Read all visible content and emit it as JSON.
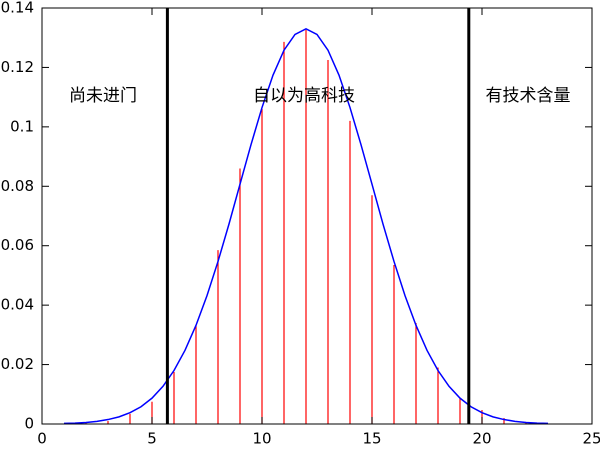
{
  "chart_data": {
    "type": "line",
    "xlim": [
      0,
      25
    ],
    "xticks": [
      0,
      5,
      10,
      15,
      20,
      25
    ],
    "ylim": [
      0,
      0.14
    ],
    "yticks": [
      0,
      0.02,
      0.04,
      0.06,
      0.08,
      0.1,
      0.12,
      0.14
    ],
    "series": [
      {
        "style": "impulse",
        "color": "#ff0000",
        "x": [
          2,
          3,
          4,
          5,
          6,
          7,
          8,
          9,
          10,
          11,
          12,
          13,
          14,
          15,
          16,
          17,
          18,
          19,
          20,
          21,
          22
        ],
        "values": [
          0.0003,
          0.001,
          0.0034,
          0.0075,
          0.0175,
          0.033,
          0.0585,
          0.086,
          0.106,
          0.1286,
          0.1326,
          0.1225,
          0.102,
          0.077,
          0.0535,
          0.034,
          0.019,
          0.0088,
          0.0047,
          0.002,
          0.0007
        ]
      },
      {
        "style": "line",
        "color": "#0000ff",
        "x": [
          1,
          1.5,
          2,
          2.5,
          3,
          3.5,
          4,
          4.5,
          5,
          5.5,
          6,
          6.5,
          7,
          7.5,
          8,
          8.5,
          9,
          9.5,
          10,
          10.5,
          11,
          11.5,
          12,
          12.5,
          13,
          13.5,
          14,
          14.5,
          15,
          15.5,
          16,
          16.5,
          17,
          17.5,
          18,
          18.5,
          19,
          19.5,
          20,
          20.5,
          21,
          21.5,
          22,
          22.5,
          23
        ],
        "values": [
          0.0002,
          0.0003,
          0.0005,
          0.0009,
          0.0015,
          0.0024,
          0.0038,
          0.0058,
          0.0087,
          0.0127,
          0.018,
          0.0248,
          0.0332,
          0.0432,
          0.0547,
          0.0673,
          0.0807,
          0.094,
          0.1065,
          0.1174,
          0.1258,
          0.1311,
          0.133,
          0.1311,
          0.1258,
          0.1174,
          0.1065,
          0.094,
          0.0807,
          0.0673,
          0.0547,
          0.0432,
          0.0332,
          0.0248,
          0.018,
          0.0127,
          0.0087,
          0.0058,
          0.0038,
          0.0024,
          0.0015,
          0.0009,
          0.0005,
          0.0003,
          0.0002
        ]
      }
    ],
    "vlines": {
      "color": "#000000",
      "x": [
        5.7,
        19.4
      ]
    },
    "annotations": [
      "尚未进门",
      "自以为高科技",
      "有技术含量"
    ]
  }
}
